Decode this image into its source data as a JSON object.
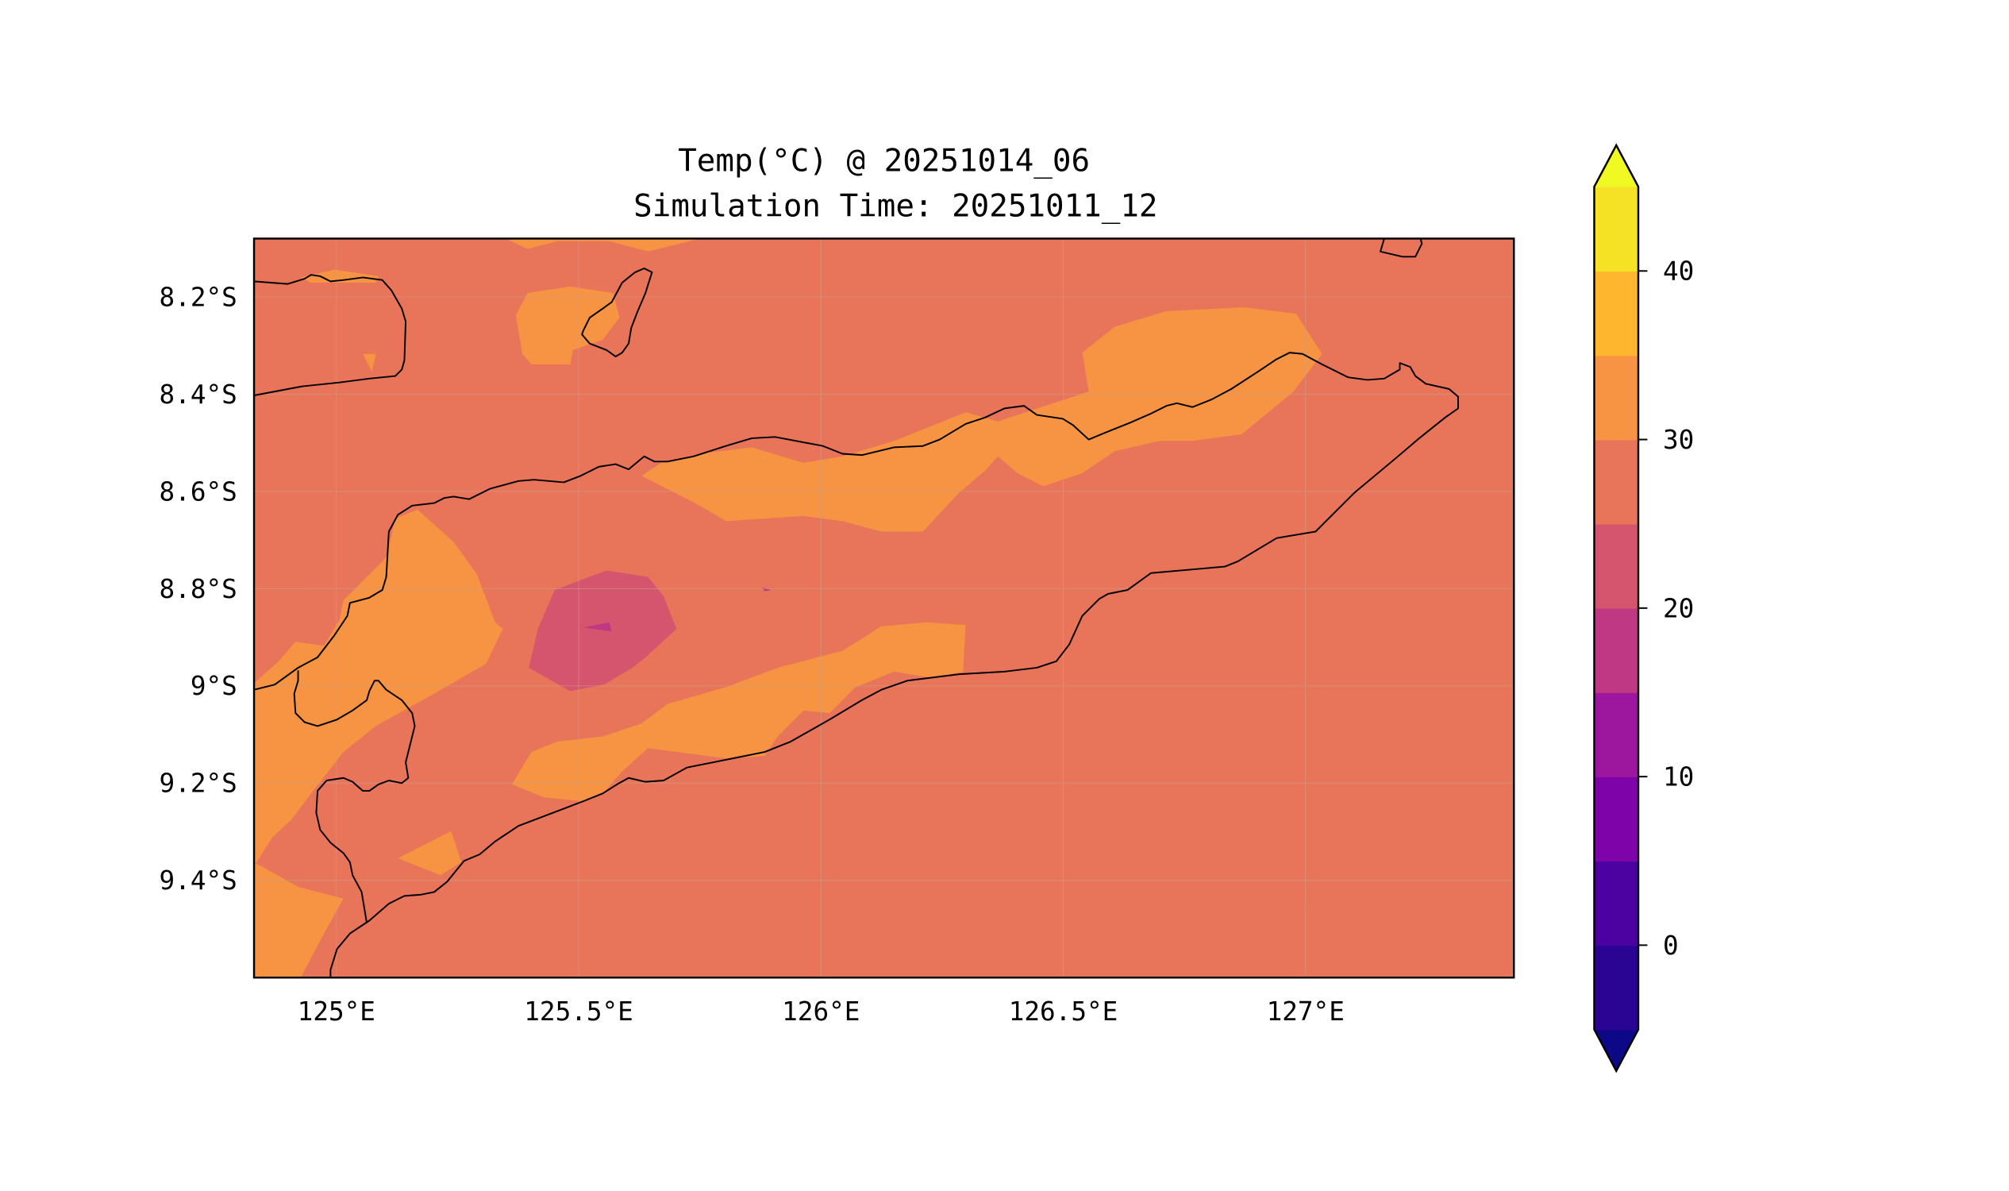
{
  "chart_data": {
    "type": "heatmap",
    "subtype": "filled-contour-map",
    "title": "Temp(°C) @ 20251014_06",
    "subtitle": "Simulation Time: 20251011_12",
    "xlabel": "",
    "ylabel": "",
    "xlim": [
      124.83,
      127.43
    ],
    "ylim": [
      -9.6,
      -8.08
    ],
    "grid": true,
    "x_ticks": [
      {
        "value": 125.0,
        "label": "125°E"
      },
      {
        "value": 125.5,
        "label": "125.5°E"
      },
      {
        "value": 126.0,
        "label": "126°E"
      },
      {
        "value": 126.5,
        "label": "126.5°E"
      },
      {
        "value": 127.0,
        "label": "127°E"
      }
    ],
    "y_ticks": [
      {
        "value": -8.2,
        "label": "8.2°S"
      },
      {
        "value": -8.4,
        "label": "8.4°S"
      },
      {
        "value": -8.6,
        "label": "8.6°S"
      },
      {
        "value": -8.8,
        "label": "8.8°S"
      },
      {
        "value": -9.0,
        "label": "9°S"
      },
      {
        "value": -9.2,
        "label": "9.2°S"
      },
      {
        "value": -9.4,
        "label": "9.4°S"
      }
    ],
    "colorbar": {
      "levels": [
        -5,
        0,
        5,
        10,
        15,
        20,
        25,
        30,
        35,
        40,
        45
      ],
      "colors": [
        "#2a0593",
        "#4c02a1",
        "#7e03a8",
        "#9c179e",
        "#be3883",
        "#d5546e",
        "#e8745a",
        "#f69443",
        "#fdb62e",
        "#f5e225"
      ],
      "extend_min_color": "#0d0887",
      "extend_max_color": "#f0f921",
      "ticks": [
        {
          "value": 0,
          "label": "0"
        },
        {
          "value": 10,
          "label": "10"
        },
        {
          "value": 20,
          "label": "20"
        },
        {
          "value": 30,
          "label": "30"
        },
        {
          "value": 40,
          "label": "40"
        }
      ],
      "placement": "right"
    },
    "field_summary": {
      "dominant_range": [
        25,
        30
      ],
      "warm_band_range": [
        30,
        35
      ],
      "cool_pocket_range": [
        20,
        25
      ],
      "coolest_spot_range": [
        15,
        20
      ]
    }
  }
}
